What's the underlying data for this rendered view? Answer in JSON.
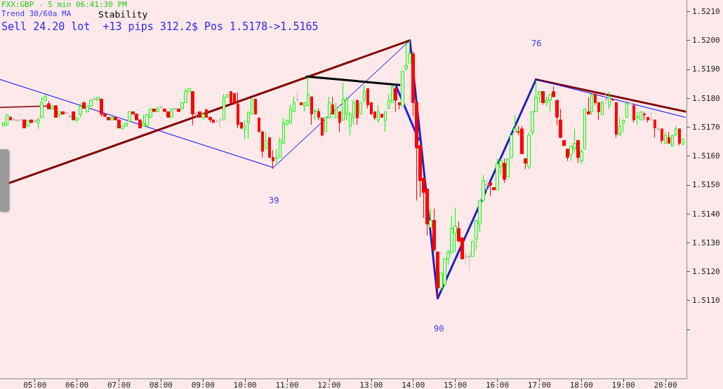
{
  "chart_data": {
    "type": "candlestick",
    "title": "FXX:GBP - 5 min 06:41:30 PM",
    "annotations": [
      "Trend 30/60a MA",
      "Stability",
      "Sell 24.20 lot  +13 pips 312.2$ Pos 1.5178->1.5165",
      "39",
      "90",
      "76"
    ],
    "xlim": [
      4.17,
      20.5
    ],
    "xticks": [
      {
        "value": 5,
        "label": "05:00"
      },
      {
        "value": 6,
        "label": "06:00"
      },
      {
        "value": 7,
        "label": "07:00"
      },
      {
        "value": 8,
        "label": "08:00"
      },
      {
        "value": 9,
        "label": "09:00"
      },
      {
        "value": 10,
        "label": "10:00"
      },
      {
        "value": 11,
        "label": "11:00"
      },
      {
        "value": 12,
        "label": "12:00"
      },
      {
        "value": 13,
        "label": "13:00"
      },
      {
        "value": 14,
        "label": "14:00"
      },
      {
        "value": 15,
        "label": "15:00"
      },
      {
        "value": 16,
        "label": "16:00"
      },
      {
        "value": 17,
        "label": "17:00"
      },
      {
        "value": 18,
        "label": "18:00"
      },
      {
        "value": 19,
        "label": "19:00"
      },
      {
        "value": 20,
        "label": "20:00"
      }
    ],
    "ylim": [
      1.5083,
      1.5214
    ],
    "yticks": [
      {
        "value": 1.51,
        "label": null
      },
      {
        "value": 1.511,
        "label": "1.5110"
      },
      {
        "value": 1.512,
        "label": "1.5120"
      },
      {
        "value": 1.513,
        "label": "1.5130"
      },
      {
        "value": 1.514,
        "label": "1.5140"
      },
      {
        "value": 1.515,
        "label": "1.5150"
      },
      {
        "value": 1.516,
        "label": "1.5160"
      },
      {
        "value": 1.517,
        "label": "1.5170"
      },
      {
        "value": 1.518,
        "label": "1.5180"
      },
      {
        "value": 1.519,
        "label": "1.5190"
      },
      {
        "value": 1.52,
        "label": "1.5200"
      },
      {
        "value": 1.521,
        "label": "1.5210"
      }
    ],
    "grid": false,
    "x": [
      4.25,
      4.333,
      4.417,
      4.5,
      4.583,
      4.667,
      4.75,
      4.833,
      4.917,
      5,
      5.083,
      5.167,
      5.25,
      5.333,
      5.417,
      5.5,
      5.583,
      5.667,
      5.75,
      5.833,
      5.917,
      6,
      6.083,
      6.167,
      6.25,
      6.333,
      6.417,
      6.5,
      6.583,
      6.667,
      6.75,
      6.833,
      6.917,
      7,
      7.083,
      7.167,
      7.25,
      7.333,
      7.417,
      7.5,
      7.583,
      7.667,
      7.75,
      7.833,
      7.917,
      8,
      8.083,
      8.167,
      8.25,
      8.333,
      8.417,
      8.5,
      8.583,
      8.667,
      8.75,
      8.833,
      8.917,
      9,
      9.083,
      9.167,
      9.25,
      9.333,
      9.417,
      9.5,
      9.583,
      9.667,
      9.75,
      9.833,
      9.917,
      10,
      10.083,
      10.167,
      10.25,
      10.333,
      10.417,
      10.5,
      10.583,
      10.667,
      10.75,
      10.833,
      10.917,
      11,
      11.083,
      11.167,
      11.25,
      11.333,
      11.417,
      11.5,
      11.583,
      11.667,
      11.75,
      11.833,
      11.917,
      12,
      12.083,
      12.167,
      12.25,
      12.333,
      12.417,
      12.5,
      12.583,
      12.667,
      12.75,
      12.833,
      12.917,
      13,
      13.083,
      13.167,
      13.25,
      13.333,
      13.417,
      13.5,
      13.583,
      13.667,
      13.75,
      13.833,
      13.917,
      14,
      14.083,
      14.167,
      14.25,
      14.333,
      14.417,
      14.5,
      14.583,
      14.667,
      14.75,
      14.833,
      14.917,
      15,
      15.083,
      15.167,
      15.25,
      15.333,
      15.417,
      15.5,
      15.583,
      15.667,
      15.75,
      15.833,
      15.917,
      16,
      16.083,
      16.167,
      16.25,
      16.333,
      16.417,
      16.5,
      16.583,
      16.667,
      16.75,
      16.833,
      16.917,
      17,
      17.083,
      17.167,
      17.25,
      17.333,
      17.417,
      17.5,
      17.583,
      17.667,
      17.75,
      17.833,
      17.917,
      18,
      18.083,
      18.167,
      18.25,
      18.333,
      18.417,
      18.5,
      18.583,
      18.667,
      18.75,
      18.833,
      18.917,
      19,
      19.083,
      19.167,
      19.25,
      19.333,
      19.417,
      19.5,
      19.583,
      19.667,
      19.75,
      19.833,
      19.917,
      20,
      20.083,
      20.167,
      20.25,
      20.333,
      20.417
    ],
    "ohlc": [
      [
        1.51704,
        1.51716,
        1.51704,
        1.51716
      ],
      [
        1.51708,
        1.51743,
        1.51704,
        1.51743
      ],
      [
        1.51734,
        1.51737,
        1.51725,
        1.51725
      ],
      [
        1.51728,
        1.51734,
        1.51722,
        1.51724
      ],
      [
        1.51725,
        1.51726,
        1.51721,
        1.51721
      ],
      [
        1.51727,
        1.51728,
        1.51723,
        1.51723
      ],
      [
        1.51725,
        1.51725,
        1.51697,
        1.51697
      ],
      [
        1.51704,
        1.51723,
        1.51704,
        1.51723
      ],
      [
        1.51725,
        1.51725,
        1.51716,
        1.51716
      ],
      [
        1.51723,
        1.51726,
        1.51716,
        1.51719
      ],
      [
        1.51715,
        1.51732,
        1.51694,
        1.51725
      ],
      [
        1.51733,
        1.51805,
        1.51733,
        1.51785
      ],
      [
        1.51793,
        1.51813,
        1.51789,
        1.51805
      ],
      [
        1.51781,
        1.5179,
        1.51763,
        1.51763
      ],
      [
        1.51762,
        1.51773,
        1.51762,
        1.51773
      ],
      [
        1.51774,
        1.51774,
        1.51734,
        1.51734
      ],
      [
        1.51743,
        1.51753,
        1.51733,
        1.51753
      ],
      [
        1.51753,
        1.51753,
        1.51745,
        1.51745
      ],
      [
        1.51751,
        1.51753,
        1.51747,
        1.51747
      ],
      [
        1.5174,
        1.51742,
        1.51733,
        1.51736
      ],
      [
        1.51753,
        1.51753,
        1.51725,
        1.51725
      ],
      [
        1.51725,
        1.51734,
        1.51715,
        1.51734
      ],
      [
        1.51743,
        1.51782,
        1.51733,
        1.51773
      ],
      [
        1.51785,
        1.51785,
        1.51765,
        1.51765
      ],
      [
        1.51753,
        1.51773,
        1.51753,
        1.51773
      ],
      [
        1.51773,
        1.51797,
        1.51773,
        1.51792
      ],
      [
        1.51799,
        1.51805,
        1.51795,
        1.51795
      ],
      [
        1.51793,
        1.51803,
        1.51793,
        1.51803
      ],
      [
        1.51797,
        1.51797,
        1.51737,
        1.51745
      ],
      [
        1.51745,
        1.51745,
        1.51737,
        1.51737
      ],
      [
        1.51734,
        1.51734,
        1.51725,
        1.51725
      ],
      [
        1.51725,
        1.51743,
        1.51725,
        1.51733
      ],
      [
        1.51734,
        1.51734,
        1.51725,
        1.51725
      ],
      [
        1.51725,
        1.51725,
        1.51697,
        1.51697
      ],
      [
        1.51694,
        1.51704,
        1.51694,
        1.51704
      ],
      [
        1.51704,
        1.51714,
        1.51704,
        1.51714
      ],
      [
        1.5172,
        1.51753,
        1.5172,
        1.51753
      ],
      [
        1.51753,
        1.51753,
        1.51745,
        1.51745
      ],
      [
        1.51745,
        1.51745,
        1.51725,
        1.51725
      ],
      [
        1.51725,
        1.51725,
        1.51697,
        1.51697
      ],
      [
        1.51704,
        1.51743,
        1.51704,
        1.51714
      ],
      [
        1.51704,
        1.51743,
        1.51704,
        1.51743
      ],
      [
        1.51734,
        1.51763,
        1.51734,
        1.51763
      ],
      [
        1.51763,
        1.51763,
        1.51754,
        1.51754
      ],
      [
        1.51753,
        1.51773,
        1.51753,
        1.51763
      ],
      [
        1.51771,
        1.51773,
        1.51765,
        1.51767
      ],
      [
        1.51763,
        1.51763,
        1.51754,
        1.51754
      ],
      [
        1.51753,
        1.51753,
        1.51734,
        1.51734
      ],
      [
        1.51734,
        1.51763,
        1.51734,
        1.51763
      ],
      [
        1.51765,
        1.51766,
        1.51761,
        1.51761
      ],
      [
        1.51763,
        1.51763,
        1.51754,
        1.51754
      ],
      [
        1.51763,
        1.51785,
        1.51763,
        1.51785
      ],
      [
        1.51785,
        1.51833,
        1.51785,
        1.51823
      ],
      [
        1.51823,
        1.51833,
        1.51823,
        1.51833
      ],
      [
        1.51823,
        1.51823,
        1.51707,
        1.51745
      ],
      [
        1.51747,
        1.51753,
        1.51734,
        1.51743
      ],
      [
        1.51753,
        1.51753,
        1.51734,
        1.51734
      ],
      [
        1.51734,
        1.51745,
        1.51725,
        1.51745
      ],
      [
        1.51761,
        1.51761,
        1.51734,
        1.51734
      ],
      [
        1.51734,
        1.51734,
        1.51716,
        1.51725
      ],
      [
        1.51725,
        1.51725,
        1.51716,
        1.51716
      ],
      [
        1.51722,
        1.51725,
        1.51716,
        1.51718
      ],
      [
        1.51727,
        1.51734,
        1.51697,
        1.51723
      ],
      [
        1.51725,
        1.51815,
        1.51725,
        1.51803
      ],
      [
        1.51803,
        1.51813,
        1.51803,
        1.51813
      ],
      [
        1.51823,
        1.51823,
        1.51785,
        1.51785
      ],
      [
        1.51817,
        1.51817,
        1.51777,
        1.51785
      ],
      [
        1.51781,
        1.51821,
        1.51696,
        1.51708
      ],
      [
        1.51716,
        1.51716,
        1.51696,
        1.51696
      ],
      [
        1.51692,
        1.51724,
        1.51656,
        1.51704
      ],
      [
        1.51716,
        1.51753,
        1.5166,
        1.51752
      ],
      [
        1.51745,
        1.51797,
        1.51745,
        1.51797
      ],
      [
        1.51797,
        1.51797,
        1.51745,
        1.51745
      ],
      [
        1.51732,
        1.51732,
        1.51684,
        1.51684
      ],
      [
        1.51684,
        1.51684,
        1.51595,
        1.51616
      ],
      [
        1.51624,
        1.51684,
        1.51624,
        1.51653
      ],
      [
        1.51664,
        1.51664,
        1.51595,
        1.51595
      ],
      [
        1.51595,
        1.5162,
        1.51555,
        1.51583
      ],
      [
        1.51591,
        1.51624,
        1.51575,
        1.51595
      ],
      [
        1.51595,
        1.51664,
        1.51595,
        1.51653
      ],
      [
        1.51644,
        1.51732,
        1.51644,
        1.51714
      ],
      [
        1.51708,
        1.51724,
        1.51708,
        1.51724
      ],
      [
        1.51714,
        1.51777,
        1.51714,
        1.51762
      ],
      [
        1.51753,
        1.51805,
        1.51753,
        1.51785
      ],
      [
        1.51797,
        1.51823,
        1.51793,
        1.51793
      ],
      [
        1.51785,
        1.51785,
        1.51777,
        1.51777
      ],
      [
        1.51773,
        1.51785,
        1.51753,
        1.51785
      ],
      [
        1.51774,
        1.51874,
        1.51774,
        1.51813
      ],
      [
        1.51805,
        1.51805,
        1.51708,
        1.51745
      ],
      [
        1.51753,
        1.51765,
        1.51724,
        1.51757
      ],
      [
        1.51754,
        1.51765,
        1.51724,
        1.51734
      ],
      [
        1.51732,
        1.51732,
        1.51668,
        1.51672
      ],
      [
        1.51684,
        1.51734,
        1.51684,
        1.51734
      ],
      [
        1.51732,
        1.51805,
        1.51732,
        1.51785
      ],
      [
        1.51777,
        1.51805,
        1.51745,
        1.51745
      ],
      [
        1.51732,
        1.51785,
        1.51732,
        1.51765
      ],
      [
        1.51753,
        1.51753,
        1.51684,
        1.51716
      ],
      [
        1.51724,
        1.51853,
        1.51724,
        1.51797
      ],
      [
        1.51745,
        1.51805,
        1.51724,
        1.51797
      ],
      [
        1.51704,
        1.51753,
        1.51672,
        1.51745
      ],
      [
        1.51732,
        1.51797,
        1.51708,
        1.51785
      ],
      [
        1.51793,
        1.51793,
        1.51708,
        1.51732
      ],
      [
        1.51745,
        1.51785,
        1.51745,
        1.51785
      ],
      [
        1.51793,
        1.51845,
        1.51785,
        1.51825
      ],
      [
        1.51833,
        1.51833,
        1.51765,
        1.51777
      ],
      [
        1.51785,
        1.51785,
        1.51745,
        1.51745
      ],
      [
        1.51753,
        1.51753,
        1.51724,
        1.51732
      ],
      [
        1.51724,
        1.51777,
        1.51716,
        1.51753
      ],
      [
        1.51745,
        1.51745,
        1.51734,
        1.51734
      ],
      [
        1.51724,
        1.51753,
        1.51684,
        1.51753
      ],
      [
        1.51765,
        1.51813,
        1.51765,
        1.51793
      ],
      [
        1.51785,
        1.51845,
        1.51785,
        1.51841
      ],
      [
        1.51833,
        1.51845,
        1.51753,
        1.51793
      ],
      [
        1.51785,
        1.51785,
        1.51761,
        1.51777
      ],
      [
        1.51773,
        1.51894,
        1.51773,
        1.51894
      ],
      [
        1.51902,
        1.51987,
        1.51894,
        1.51914
      ],
      [
        1.51922,
        1.52003,
        1.51922,
        1.51954
      ],
      [
        1.51954,
        1.51962,
        1.51737,
        1.51785
      ],
      [
        1.51785,
        1.51785,
        1.51446,
        1.51628
      ],
      [
        1.51636,
        1.51636,
        1.51458,
        1.51515
      ],
      [
        1.51523,
        1.51523,
        1.51386,
        1.51474
      ],
      [
        1.51486,
        1.51486,
        1.51325,
        1.51365
      ],
      [
        1.51353,
        1.51418,
        1.51353,
        1.51377
      ],
      [
        1.51377,
        1.51418,
        1.51268,
        1.51276
      ],
      [
        1.51268,
        1.51268,
        1.5111,
        1.51143
      ],
      [
        1.51143,
        1.51195,
        1.51135,
        1.51195
      ],
      [
        1.51155,
        1.51244,
        1.51151,
        1.51244
      ],
      [
        1.51244,
        1.51276,
        1.51224,
        1.51268
      ],
      [
        1.51264,
        1.51394,
        1.51264,
        1.51349
      ],
      [
        1.51333,
        1.51422,
        1.51268,
        1.51357
      ],
      [
        1.51349,
        1.51373,
        1.51305,
        1.51305
      ],
      [
        1.51317,
        1.51317,
        1.51244,
        1.51244
      ],
      [
        1.51254,
        1.51264,
        1.51224,
        1.5125
      ],
      [
        1.51254,
        1.51264,
        1.51204,
        1.5125
      ],
      [
        1.51252,
        1.51305,
        1.51252,
        1.51305
      ],
      [
        1.51313,
        1.51377,
        1.51276,
        1.51377
      ],
      [
        1.51365,
        1.51446,
        1.51337,
        1.51446
      ],
      [
        1.51446,
        1.51535,
        1.51446,
        1.51515
      ],
      [
        1.51502,
        1.51515,
        1.51474,
        1.51498
      ],
      [
        1.51507,
        1.51507,
        1.51462,
        1.51499
      ],
      [
        1.51491,
        1.51491,
        1.51483,
        1.51483
      ],
      [
        1.51483,
        1.51591,
        1.51483,
        1.51573
      ],
      [
        1.51563,
        1.51591,
        1.51535,
        1.51583
      ],
      [
        1.51575,
        1.51591,
        1.51507,
        1.51519
      ],
      [
        1.51527,
        1.51591,
        1.51527,
        1.51591
      ],
      [
        1.51595,
        1.51672,
        1.51595,
        1.51672
      ],
      [
        1.51684,
        1.51742,
        1.51684,
        1.51694
      ],
      [
        1.51684,
        1.51704,
        1.51672,
        1.51682
      ],
      [
        1.51694,
        1.51704,
        1.51608,
        1.51608
      ],
      [
        1.51591,
        1.51591,
        1.51555,
        1.51575
      ],
      [
        1.51563,
        1.51682,
        1.51555,
        1.51672
      ],
      [
        1.51682,
        1.51753,
        1.51672,
        1.51753
      ],
      [
        1.51753,
        1.51863,
        1.51753,
        1.51803
      ],
      [
        1.51813,
        1.51823,
        1.51785,
        1.51823
      ],
      [
        1.51823,
        1.51823,
        1.51777,
        1.51785
      ],
      [
        1.51785,
        1.51805,
        1.51773,
        1.51793
      ],
      [
        1.51793,
        1.51813,
        1.51753,
        1.51813
      ],
      [
        1.51823,
        1.51841,
        1.51805,
        1.51805
      ],
      [
        1.51793,
        1.51793,
        1.51707,
        1.51734
      ],
      [
        1.51725,
        1.51763,
        1.51664,
        1.51664
      ],
      [
        1.51654,
        1.51654,
        1.51636,
        1.51636
      ],
      [
        1.51624,
        1.51624,
        1.51583,
        1.51595
      ],
      [
        1.51605,
        1.51634,
        1.51583,
        1.51634
      ],
      [
        1.51624,
        1.51694,
        1.51613,
        1.51644
      ],
      [
        1.51654,
        1.51654,
        1.51575,
        1.51595
      ],
      [
        1.51583,
        1.51624,
        1.51573,
        1.51615
      ],
      [
        1.51624,
        1.51763,
        1.51624,
        1.51763
      ],
      [
        1.51753,
        1.51803,
        1.51745,
        1.51745
      ],
      [
        1.51753,
        1.51813,
        1.51742,
        1.51813
      ],
      [
        1.51813,
        1.51823,
        1.51777,
        1.51785
      ],
      [
        1.51785,
        1.51785,
        1.51725,
        1.51753
      ],
      [
        1.51742,
        1.51793,
        1.51742,
        1.51785
      ],
      [
        1.51799,
        1.51823,
        1.51777,
        1.51795
      ],
      [
        1.51775,
        1.51823,
        1.51763,
        1.51803
      ],
      [
        1.51797,
        1.51797,
        1.51793,
        1.51793
      ],
      [
        1.51785,
        1.51785,
        1.51664,
        1.51675
      ],
      [
        1.51672,
        1.51734,
        1.51672,
        1.51704
      ],
      [
        1.51714,
        1.51724,
        1.51682,
        1.51724
      ],
      [
        1.51734,
        1.51783,
        1.51734,
        1.51783
      ],
      [
        1.51785,
        1.51793,
        1.51779,
        1.51779
      ],
      [
        1.51775,
        1.51775,
        1.51716,
        1.51725
      ],
      [
        1.51734,
        1.51753,
        1.51707,
        1.51736
      ],
      [
        1.51725,
        1.51753,
        1.51725,
        1.51753
      ],
      [
        1.51745,
        1.51753,
        1.51725,
        1.51742
      ],
      [
        1.51734,
        1.51734,
        1.51716,
        1.51725
      ],
      [
        1.51727,
        1.51753,
        1.51723,
        1.51723
      ],
      [
        1.51725,
        1.51725,
        1.51664,
        1.51697
      ],
      [
        1.51696,
        1.51697,
        1.51685,
        1.51692
      ],
      [
        1.51694,
        1.51694,
        1.51644,
        1.51654
      ],
      [
        1.51644,
        1.51682,
        1.51644,
        1.51672
      ],
      [
        1.51664,
        1.51682,
        1.51644,
        1.51644
      ],
      [
        1.51634,
        1.51672,
        1.51634,
        1.51672
      ],
      [
        1.51672,
        1.51704,
        1.51672,
        1.51694
      ],
      [
        1.51694,
        1.51694,
        1.51636,
        1.51644
      ],
      [
        1.5164,
        1.51658,
        1.5164,
        1.51658
      ]
    ],
    "colors": [
      "#00ff00",
      "#00ff00",
      "#ff0000",
      "#c0c0c0",
      "#c0c0c0",
      "#c0c0c0",
      "#ff0000",
      "#00ff00",
      "#ff0000",
      "#c0c0c0",
      "#00ff00",
      "#00ff00",
      "#00ff00",
      "#ff0000",
      "#00ff00",
      "#ff0000",
      "#00ff00",
      "#ff0000",
      "#c0c0c0",
      "#c0c0c0",
      "#ff0000",
      "#00ff00",
      "#00ff00",
      "#ff0000",
      "#00ff00",
      "#00ff00",
      "#c0c0c0",
      "#00ff00",
      "#ff0000",
      "#ff0000",
      "#ff0000",
      "#00ff00",
      "#ff0000",
      "#ff0000",
      "#00ff00",
      "#00ff00",
      "#00ff00",
      "#ff0000",
      "#ff0000",
      "#ff0000",
      "#00ff00",
      "#00ff00",
      "#00ff00",
      "#ff0000",
      "#00ff00",
      "#c0c0c0",
      "#ff0000",
      "#ff0000",
      "#00ff00",
      "#c0c0c0",
      "#ff0000",
      "#00ff00",
      "#00ff00",
      "#00ff00",
      "#ff0000",
      "#c0c0c0",
      "#ff0000",
      "#00ff00",
      "#ff0000",
      "#ff0000",
      "#ff0000",
      "#c0c0c0",
      "#c0c0c0",
      "#00ff00",
      "#00ff00",
      "#ff0000",
      "#ff0000",
      "#ff0000",
      "#ff0000",
      "#00ff00",
      "#00ff00",
      "#00ff00",
      "#ff0000",
      "#ff0000",
      "#ff0000",
      "#00ff00",
      "#ff0000",
      "#ff0000",
      "#00ff00",
      "#00ff00",
      "#00ff00",
      "#00ff00",
      "#00ff00",
      "#00ff00",
      "#c0c0c0",
      "#ff0000",
      "#00ff00",
      "#00ff00",
      "#ff0000",
      "#00ff00",
      "#ff0000",
      "#ff0000",
      "#00ff00",
      "#00ff00",
      "#ff0000",
      "#00ff00",
      "#ff0000",
      "#00ff00",
      "#00ff00",
      "#00ff00",
      "#00ff00",
      "#ff0000",
      "#00ff00",
      "#00ff00",
      "#ff0000",
      "#ff0000",
      "#ff0000",
      "#00ff00",
      "#ff0000",
      "#00ff00",
      "#00ff00",
      "#00ff00",
      "#ff0000",
      "#ff0000",
      "#00ff00",
      "#00ff00",
      "#00ff00",
      "#ff0000",
      "#ff0000",
      "#ff0000",
      "#ff0000",
      "#ff0000",
      "#00ff00",
      "#ff0000",
      "#ff0000",
      "#00ff00",
      "#00ff00",
      "#00ff00",
      "#00ff00",
      "#00ff00",
      "#ff0000",
      "#ff0000",
      "#c0c0c0",
      "#c0c0c0",
      "#00ff00",
      "#00ff00",
      "#00ff00",
      "#00ff00",
      "#c0c0c0",
      "#ff0000",
      "#ff0000",
      "#00ff00",
      "#00ff00",
      "#ff0000",
      "#00ff00",
      "#00ff00",
      "#00ff00",
      "#ff0000",
      "#ff0000",
      "#ff0000",
      "#00ff00",
      "#00ff00",
      "#00ff00",
      "#00ff00",
      "#ff0000",
      "#00ff00",
      "#00ff00",
      "#ff0000",
      "#ff0000",
      "#ff0000",
      "#ff0000",
      "#ff0000",
      "#00ff00",
      "#00ff00",
      "#ff0000",
      "#00ff00",
      "#00ff00",
      "#ff0000",
      "#00ff00",
      "#ff0000",
      "#ff0000",
      "#00ff00",
      "#c0c0c0",
      "#00ff00",
      "#ff0000",
      "#ff0000",
      "#00ff00",
      "#00ff00",
      "#00ff00",
      "#c0c0c0",
      "#ff0000",
      "#00ff00",
      "#00ff00",
      "#ff0000",
      "#ff0000",
      "#c0c0c0",
      "#ff0000",
      "#c0c0c0",
      "#ff0000",
      "#00ff00",
      "#ff0000",
      "#00ff00",
      "#00ff00",
      "#ff0000",
      "#00ff00"
    ],
    "series": [
      {
        "type": "line",
        "color": "#0000ff",
        "x": [
          4.17,
          10.67,
          13.92
        ],
        "values": [
          1.51865,
          1.5156,
          1.52
        ]
      },
      {
        "type": "line",
        "color": "#800000",
        "x": [
          4.4,
          13.92
        ],
        "values": [
          1.51507,
          1.52
        ]
      },
      {
        "type": "line",
        "color": "#9b3030",
        "x": [
          4.17,
          5.33
        ],
        "values": [
          1.51768,
          1.51773
        ]
      },
      {
        "type": "line",
        "color": "#000000",
        "x": [
          11.47,
          13.67
        ],
        "values": [
          1.51875,
          1.51846
        ]
      },
      {
        "type": "line",
        "color": "#1e1eff",
        "x": [
          13.58,
          14.13
        ],
        "values": [
          1.51846,
          1.51657
        ]
      },
      {
        "type": "line",
        "color": "#2020c0",
        "x": [
          13.92,
          14.58,
          16.92
        ],
        "values": [
          1.52,
          1.51107,
          1.51865
        ]
      },
      {
        "type": "line",
        "color": "#800000",
        "x": [
          16.92,
          20.47
        ],
        "values": [
          1.51865,
          1.51754
        ]
      },
      {
        "type": "line",
        "color": "#0000ff",
        "x": [
          16.92,
          20.47
        ],
        "values": [
          1.51865,
          1.51734
        ]
      }
    ]
  }
}
